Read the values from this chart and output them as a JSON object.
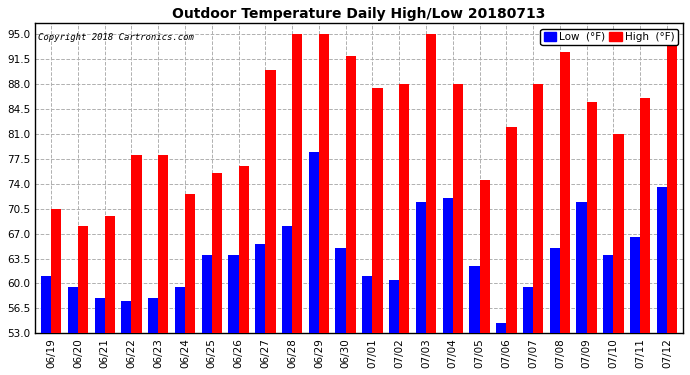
{
  "title": "Outdoor Temperature Daily High/Low 20180713",
  "copyright": "Copyright 2018 Cartronics.com",
  "legend_low": "Low  (°F)",
  "legend_high": "High  (°F)",
  "dates": [
    "06/19",
    "06/20",
    "06/21",
    "06/22",
    "06/23",
    "06/24",
    "06/25",
    "06/26",
    "06/27",
    "06/28",
    "06/29",
    "06/30",
    "07/01",
    "07/02",
    "07/03",
    "07/04",
    "07/05",
    "07/06",
    "07/07",
    "07/08",
    "07/09",
    "07/10",
    "07/11",
    "07/12"
  ],
  "highs": [
    70.5,
    68.0,
    69.5,
    78.0,
    78.0,
    72.5,
    75.5,
    76.5,
    90.0,
    95.0,
    95.0,
    92.0,
    87.5,
    88.0,
    95.0,
    88.0,
    74.5,
    82.0,
    88.0,
    92.5,
    85.5,
    81.0,
    86.0,
    95.0
  ],
  "lows": [
    61.0,
    59.5,
    58.0,
    57.5,
    58.0,
    59.5,
    64.0,
    64.0,
    65.5,
    68.0,
    78.5,
    65.0,
    61.0,
    60.5,
    71.5,
    72.0,
    62.5,
    54.5,
    59.5,
    65.0,
    71.5,
    64.0,
    66.5,
    73.5
  ],
  "ylim_min": 53.0,
  "ylim_max": 96.5,
  "yticks": [
    53.0,
    56.5,
    60.0,
    63.5,
    67.0,
    70.5,
    74.0,
    77.5,
    81.0,
    84.5,
    88.0,
    91.5,
    95.0
  ],
  "high_color": "#ff0000",
  "low_color": "#0000ff",
  "bg_color": "#ffffff",
  "grid_color": "#b0b0b0",
  "bar_width": 0.38,
  "title_fontsize": 10,
  "tick_fontsize": 7.5,
  "copyright_fontsize": 6.5
}
